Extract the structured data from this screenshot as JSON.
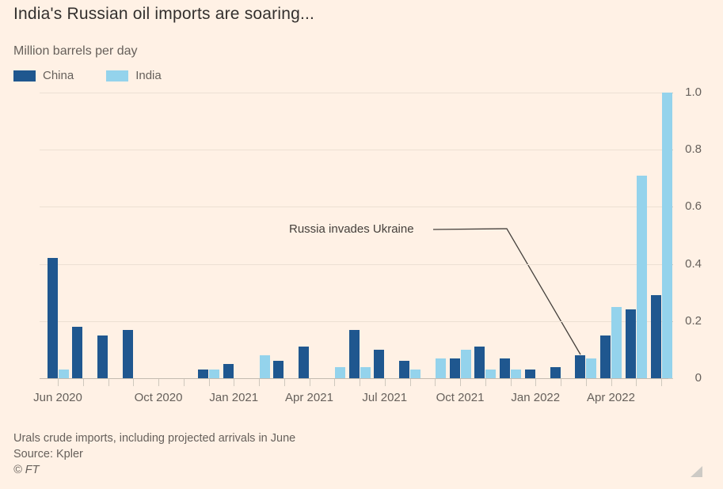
{
  "header": {
    "title": "India's Russian oil imports are soaring...",
    "subtitle": "Million barrels per day"
  },
  "legend": [
    {
      "label": "China",
      "color": "#1f578f"
    },
    {
      "label": "India",
      "color": "#94d3ec"
    }
  ],
  "annotation": {
    "text": "Russia invades Ukraine"
  },
  "footer": {
    "note": "Urals crude imports, including projected arrivals in June",
    "source": "Source: Kpler",
    "copyright": "© FT"
  },
  "chart_data": {
    "type": "bar",
    "title": "India's Russian oil imports are soaring...",
    "subtitle_unit": "Million barrels per day",
    "xlabel": "",
    "ylabel": "Million barrels per day",
    "ylim": [
      0,
      1.0
    ],
    "yticks": [
      0,
      0.2,
      0.4,
      0.6,
      0.8,
      1.0
    ],
    "ytick_labels": [
      "0",
      "0.2",
      "0.4",
      "0.6",
      "0.8",
      "1.0"
    ],
    "grid": true,
    "legend_position": "top-left",
    "categories": [
      "Jun 2020",
      "Jul 2020",
      "Aug 2020",
      "Sep 2020",
      "Oct 2020",
      "Nov 2020",
      "Dec 2020",
      "Jan 2021",
      "Feb 2021",
      "Mar 2021",
      "Apr 2021",
      "May 2021",
      "Jun 2021",
      "Jul 2021",
      "Aug 2021",
      "Sep 2021",
      "Oct 2021",
      "Nov 2021",
      "Dec 2021",
      "Jan 2022",
      "Feb 2022",
      "Mar 2022",
      "Apr 2022",
      "May 2022",
      "Jun 2022"
    ],
    "x_axis_labels": [
      "Jun 2020",
      "Oct 2020",
      "Jan 2021",
      "Apr 2021",
      "Jul 2021",
      "Oct 2021",
      "Jan 2022",
      "Apr 2022"
    ],
    "series": [
      {
        "name": "China",
        "color": "#1f578f",
        "values": [
          0.42,
          0.18,
          0.15,
          0.17,
          0,
          0,
          0.03,
          0.05,
          0,
          0.06,
          0.11,
          0,
          0.17,
          0.1,
          0.06,
          0,
          0.07,
          0.11,
          0.07,
          0.03,
          0.04,
          0.08,
          0.15,
          0.24,
          0.29
        ]
      },
      {
        "name": "India",
        "color": "#94d3ec",
        "values": [
          0.03,
          0,
          0,
          0,
          0,
          0,
          0.03,
          0,
          0.08,
          0,
          0,
          0.04,
          0.04,
          0,
          0.03,
          0.07,
          0.1,
          0.03,
          0.03,
          0,
          0,
          0.07,
          0.25,
          0.71,
          1.0
        ]
      }
    ],
    "annotations": [
      {
        "text": "Russia invades Ukraine",
        "points_to_category": "Mar 2022",
        "points_to_series": "China"
      }
    ]
  }
}
